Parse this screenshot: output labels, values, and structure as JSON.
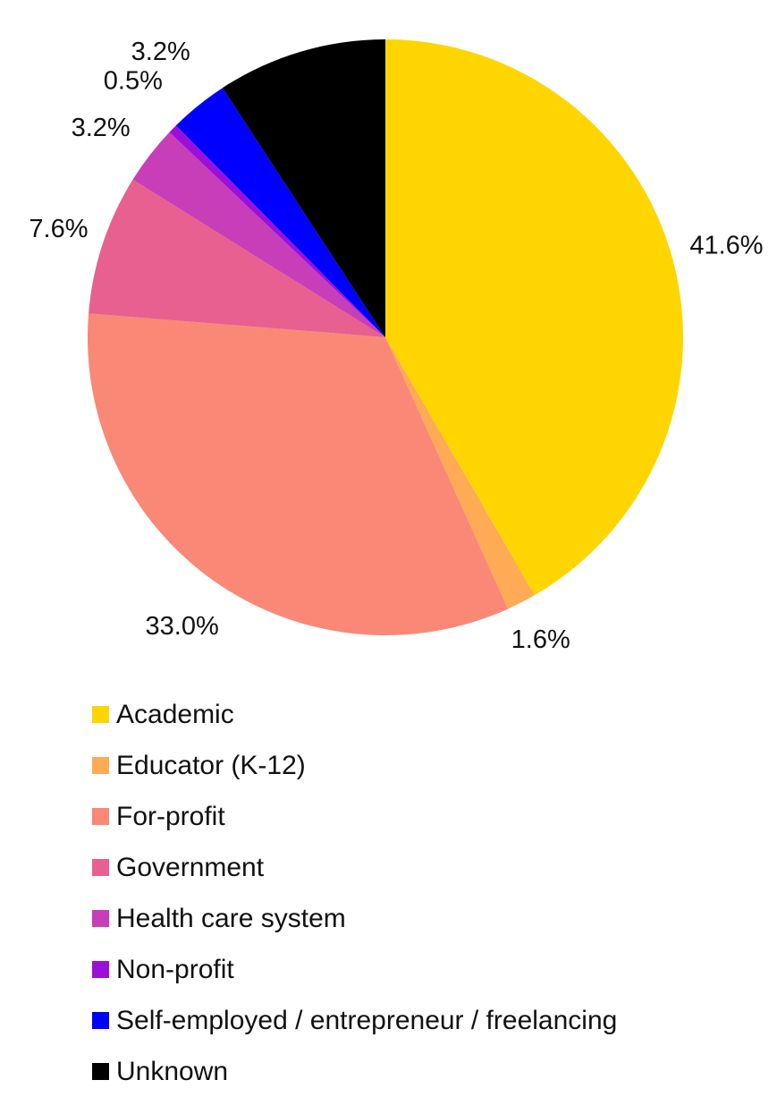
{
  "chart_data": {
    "type": "pie",
    "title": "",
    "categories": [
      "Academic",
      "Educator (K-12)",
      "For-profit",
      "Government",
      "Health care system",
      "Non-profit",
      "Self-employed / entrepreneur / freelancing",
      "Unknown"
    ],
    "values": [
      41.6,
      1.6,
      33.0,
      7.6,
      3.2,
      0.5,
      3.2,
      9.2
    ],
    "value_labels": [
      "41.6%",
      "1.6%",
      "33.0%",
      "7.6%",
      "3.2%",
      "0.5%",
      "3.2%",
      "9.2%"
    ],
    "colors": [
      "#FFD500",
      "#FFAA55",
      "#FA8877",
      "#E8608F",
      "#C83DB8",
      "#9B0FD8",
      "#0000FF",
      "#000000"
    ],
    "start_angle": "12 o'clock",
    "direction": "clockwise",
    "legend_position": "bottom-left",
    "legend": {
      "entries": [
        "Academic",
        "Educator (K-12)",
        "For-profit",
        "Government",
        "Health care system",
        "Non-profit",
        "Self-employed / entrepreneur / freelancing",
        "Unknown"
      ]
    }
  }
}
